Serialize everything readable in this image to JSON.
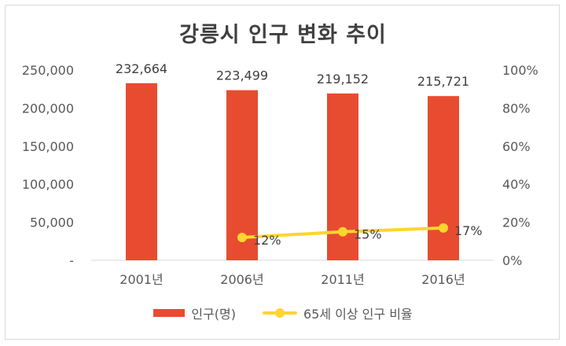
{
  "chart_data": {
    "type": "bar",
    "title": "강릉시 인구 변화 추이",
    "categories": [
      "2001년",
      "2006년",
      "2011년",
      "2016년"
    ],
    "series": [
      {
        "name": "인구(명)",
        "type": "bar",
        "axis": "left",
        "values": [
          232664,
          223499,
          219152,
          215721
        ],
        "labels": [
          "232,664",
          "223,499",
          "219,152",
          "215,721"
        ],
        "color": "#e84c30"
      },
      {
        "name": "65세 이상 인구 비율",
        "type": "line",
        "axis": "right",
        "values": [
          null,
          12,
          15,
          17
        ],
        "labels": [
          "",
          "12%",
          "15%",
          "17%"
        ],
        "color": "#ffd52e"
      }
    ],
    "y_left": {
      "range": [
        0,
        250000
      ],
      "ticks": [
        0,
        50000,
        100000,
        150000,
        200000,
        250000
      ],
      "tick_labels": [
        "-",
        "50,000",
        "100,000",
        "150,000",
        "200,000",
        "250,000"
      ]
    },
    "y_right": {
      "range": [
        0,
        100
      ],
      "ticks": [
        0,
        20,
        40,
        60,
        80,
        100
      ],
      "tick_labels": [
        "0%",
        "20%",
        "40%",
        "60%",
        "80%",
        "100%"
      ]
    },
    "grid": false,
    "legend_position": "bottom"
  }
}
